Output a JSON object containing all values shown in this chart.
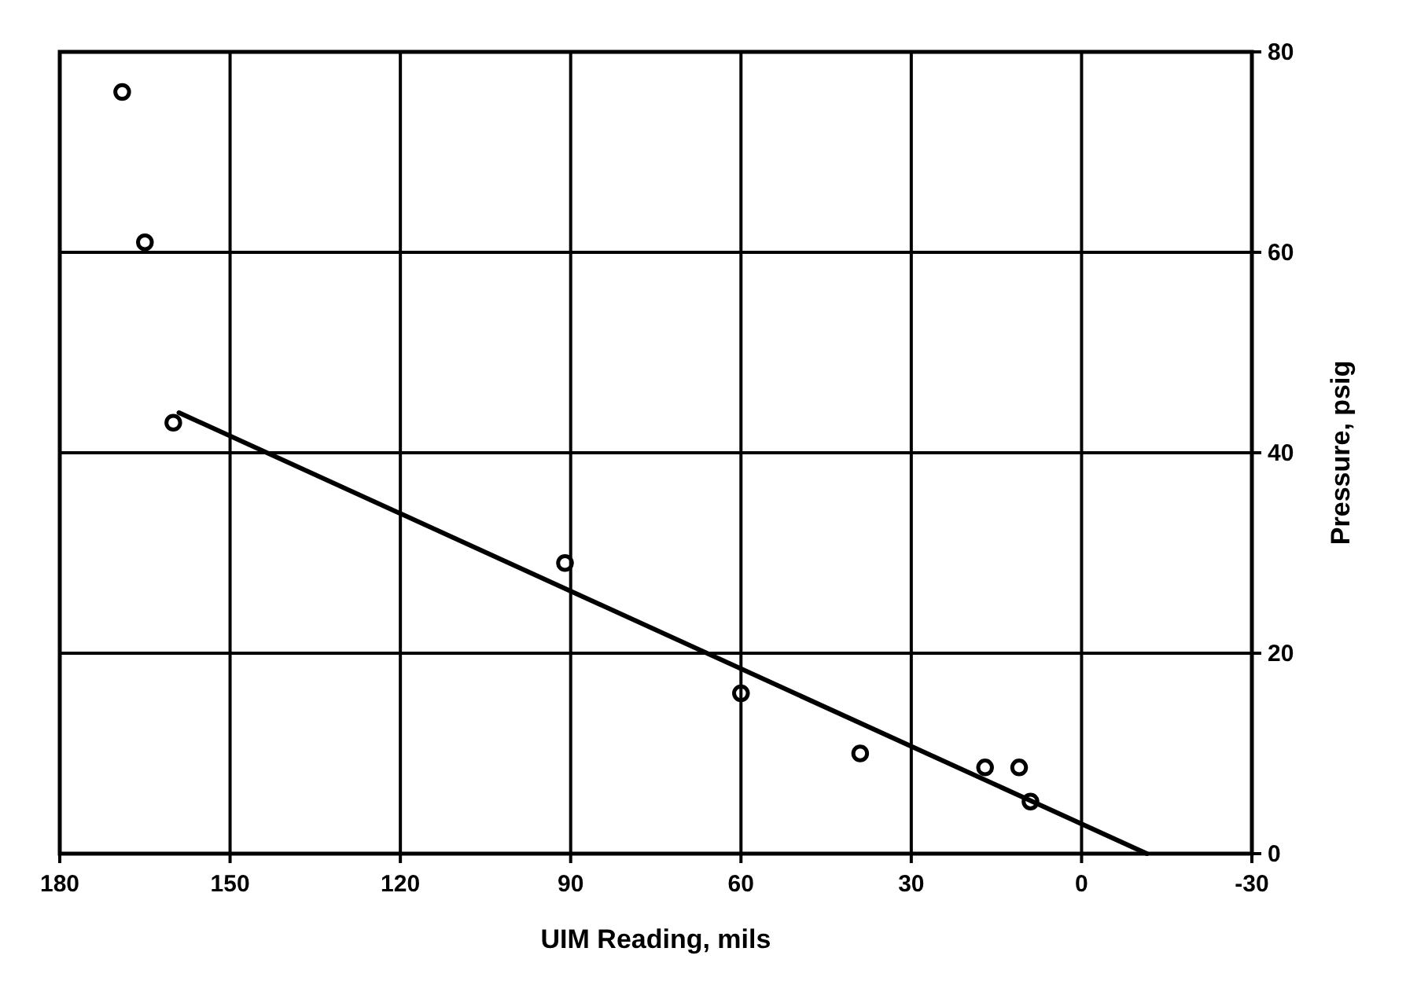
{
  "chart_data": {
    "type": "scatter",
    "xlabel": "UIM Reading, mils",
    "ylabel": "Pressure, psig",
    "xlim": [
      180,
      -30
    ],
    "xticks": [
      180,
      150,
      120,
      90,
      60,
      30,
      0,
      -30
    ],
    "ylim": [
      0,
      80
    ],
    "yticks": [
      0,
      20,
      40,
      60,
      80
    ],
    "grid": true,
    "marker": "circle",
    "series": [
      {
        "color": "#000000",
        "x": [
          169,
          165,
          160,
          91,
          60,
          39,
          17,
          11,
          9
        ],
        "values": [
          76,
          61,
          43,
          29,
          16,
          10,
          8.6,
          8.6,
          5.2
        ]
      },
      {
        "type": "line",
        "color": "#000000",
        "x": [
          159,
          -11.5
        ],
        "values": [
          44,
          0
        ],
        "marker": "none"
      }
    ]
  }
}
